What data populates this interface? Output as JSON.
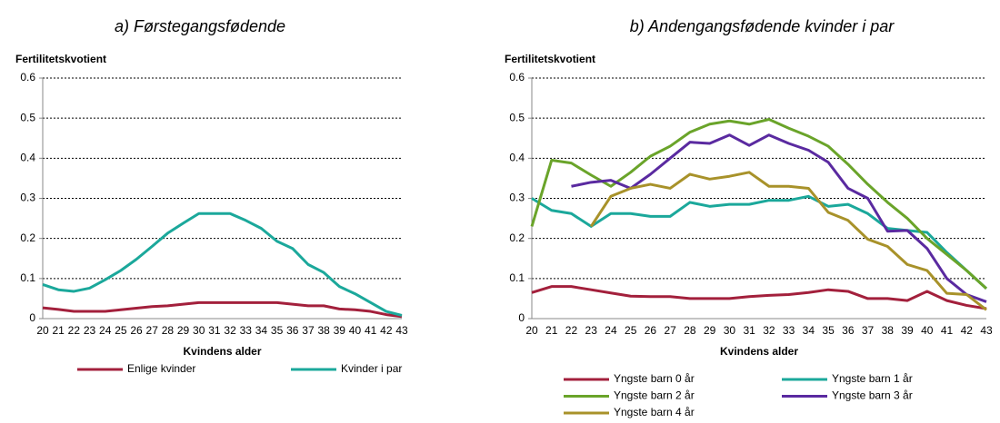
{
  "chart_data": [
    {
      "type": "line",
      "title": "a) Førstegangsfødende",
      "y_label": "Fertilitetskvotient",
      "x_label": "Kvindens alder",
      "categories": [
        20,
        21,
        22,
        23,
        24,
        25,
        26,
        27,
        28,
        29,
        30,
        31,
        32,
        33,
        34,
        35,
        36,
        37,
        38,
        39,
        40,
        41,
        42,
        43
      ],
      "ylim": [
        0,
        0.6
      ],
      "yticks": [
        0,
        0.1,
        0.2,
        0.3,
        0.4,
        0.5,
        0.6
      ],
      "grid": true,
      "series": [
        {
          "name": "Enlige kvinder",
          "color": "#a3203c",
          "values": [
            0.027,
            0.023,
            0.018,
            0.018,
            0.018,
            0.022,
            0.026,
            0.03,
            0.032,
            0.036,
            0.04,
            0.04,
            0.04,
            0.04,
            0.04,
            0.04,
            0.036,
            0.032,
            0.032,
            0.024,
            0.022,
            0.018,
            0.01,
            0.005
          ]
        },
        {
          "name": "Kvinder i par",
          "color": "#1ba89b",
          "values": [
            0.085,
            0.072,
            0.068,
            0.076,
            0.097,
            0.12,
            0.148,
            0.18,
            0.213,
            0.238,
            0.262,
            0.262,
            0.262,
            0.245,
            0.225,
            0.193,
            0.175,
            0.135,
            0.115,
            0.08,
            0.062,
            0.04,
            0.018,
            0.008
          ]
        }
      ]
    },
    {
      "type": "line",
      "title": "b) Andengangsfødende kvinder i par",
      "y_label": "Fertilitetskvotient",
      "x_label": "Kvindens alder",
      "categories": [
        20,
        21,
        22,
        23,
        24,
        25,
        26,
        27,
        28,
        29,
        30,
        31,
        32,
        33,
        34,
        35,
        36,
        37,
        38,
        39,
        40,
        41,
        42,
        43
      ],
      "ylim": [
        0,
        0.6
      ],
      "yticks": [
        0,
        0.1,
        0.2,
        0.3,
        0.4,
        0.5,
        0.6
      ],
      "grid": true,
      "series": [
        {
          "name": "Yngste barn 0 år",
          "color": "#a3203c",
          "values": [
            0.065,
            0.08,
            0.08,
            0.072,
            0.064,
            0.056,
            0.055,
            0.055,
            0.05,
            0.05,
            0.05,
            0.055,
            0.058,
            0.06,
            0.065,
            0.072,
            0.068,
            0.05,
            0.05,
            0.045,
            0.068,
            0.045,
            0.033,
            0.025
          ]
        },
        {
          "name": "Yngste barn 1 år",
          "color": "#1ba89b",
          "values": [
            0.3,
            0.27,
            0.262,
            0.23,
            0.262,
            0.262,
            0.255,
            0.255,
            0.29,
            0.28,
            0.285,
            0.285,
            0.295,
            0.295,
            0.305,
            0.28,
            0.285,
            0.262,
            0.225,
            0.22,
            0.215,
            0.165,
            0.12,
            0.075
          ]
        },
        {
          "name": "Yngste barn 2 år",
          "color": "#6aa42a",
          "values": [
            0.23,
            0.395,
            0.388,
            0.358,
            0.33,
            0.365,
            0.405,
            0.43,
            0.465,
            0.485,
            0.493,
            0.485,
            0.497,
            0.475,
            0.455,
            0.43,
            0.385,
            0.335,
            0.29,
            0.25,
            0.2,
            0.16,
            0.12,
            0.075
          ]
        },
        {
          "name": "Yngste barn 3 år",
          "color": "#5a2aa0",
          "values": [
            null,
            null,
            0.33,
            0.34,
            0.345,
            0.325,
            0.36,
            0.4,
            0.44,
            0.437,
            0.458,
            0.432,
            0.458,
            0.437,
            0.42,
            0.39,
            0.325,
            0.3,
            0.218,
            0.22,
            0.175,
            0.1,
            0.06,
            0.042
          ]
        },
        {
          "name": "Yngste barn 4 år",
          "color": "#a8922a",
          "values": [
            null,
            null,
            null,
            0.23,
            0.305,
            0.325,
            0.335,
            0.325,
            0.36,
            0.348,
            0.355,
            0.365,
            0.33,
            0.33,
            0.325,
            0.265,
            0.245,
            0.198,
            0.18,
            0.135,
            0.12,
            0.063,
            0.06,
            0.022
          ]
        }
      ]
    }
  ]
}
